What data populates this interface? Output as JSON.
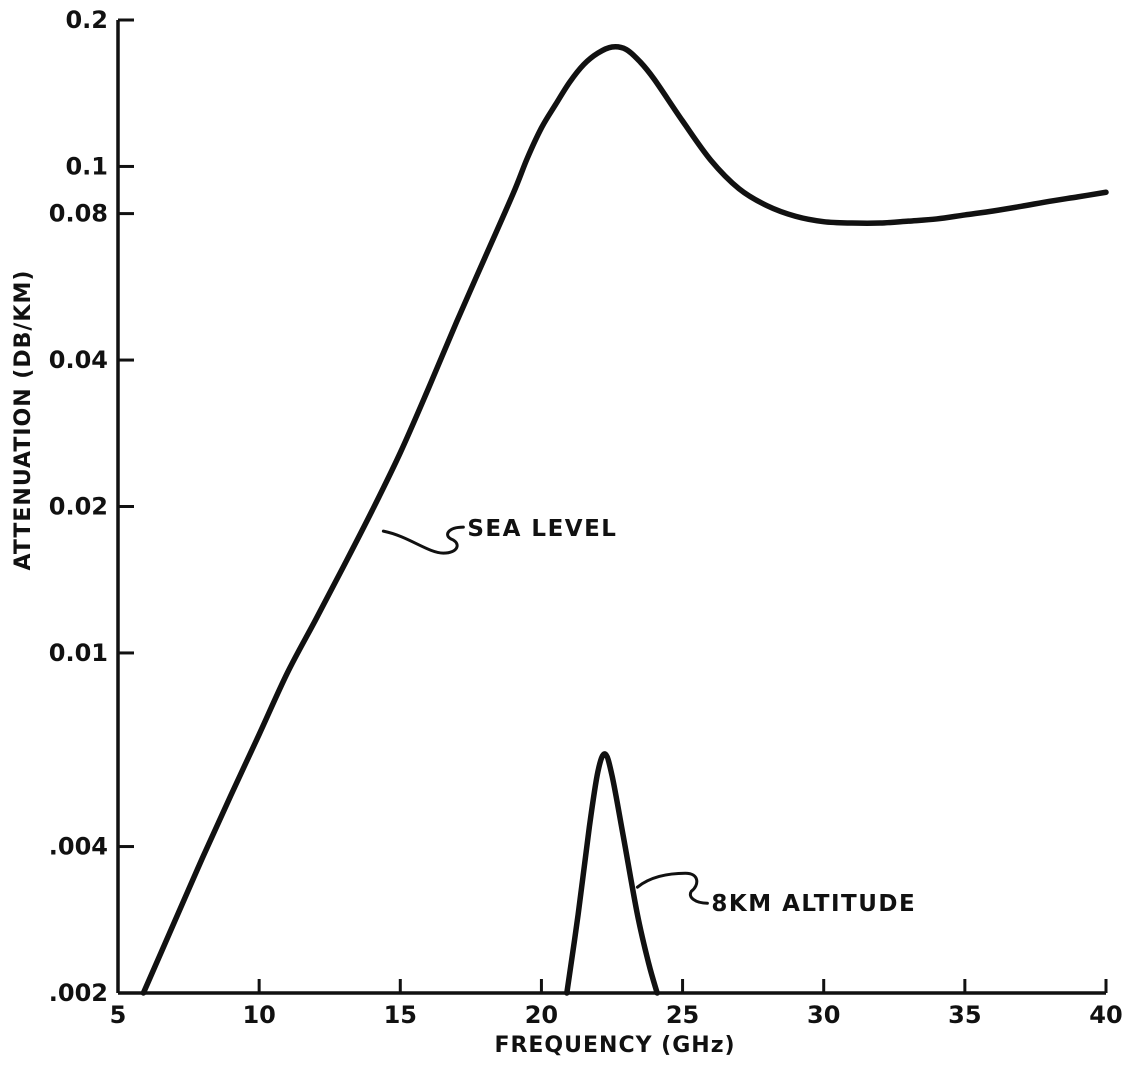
{
  "chart_data": {
    "type": "line",
    "title": "",
    "xlabel": "FREQUENCY (GHz)",
    "ylabel": "ATTENUATION (DB/KM)",
    "xlim": [
      5,
      40
    ],
    "ylim": [
      0.002,
      0.2
    ],
    "yscale": "log",
    "grid": false,
    "legend": "none",
    "x_ticks": [
      5,
      10,
      15,
      20,
      25,
      30,
      35,
      40
    ],
    "x_tick_labels": [
      "5",
      "10",
      "15",
      "20",
      "25",
      "30",
      "35",
      "40"
    ],
    "y_ticks": [
      0.002,
      0.004,
      0.01,
      0.02,
      0.04,
      0.08,
      0.1,
      0.2
    ],
    "y_tick_labels": [
      ".002",
      ".004",
      "0.01",
      "0.02",
      "0.04",
      "0.08",
      "0.1",
      "0.2"
    ],
    "series": [
      {
        "name": "SEA LEVEL",
        "x": [
          5.9,
          7,
          8,
          9,
          10,
          11,
          12,
          13,
          14,
          15,
          16,
          17,
          18,
          19,
          19.5,
          20,
          20.5,
          21,
          21.5,
          22,
          22.5,
          23,
          23.5,
          24,
          25,
          26,
          27,
          28,
          29,
          30,
          31,
          32,
          33,
          34,
          35,
          36,
          37,
          38,
          39,
          40
        ],
        "y": [
          0.002,
          0.0028,
          0.0038,
          0.0051,
          0.0068,
          0.0091,
          0.0117,
          0.0151,
          0.0196,
          0.0258,
          0.035,
          0.048,
          0.065,
          0.088,
          0.104,
          0.12,
          0.134,
          0.149,
          0.162,
          0.171,
          0.176,
          0.174,
          0.164,
          0.151,
          0.124,
          0.103,
          0.09,
          0.083,
          0.079,
          0.077,
          0.0765,
          0.0765,
          0.0772,
          0.078,
          0.0795,
          0.081,
          0.0828,
          0.0848,
          0.0866,
          0.0885
        ]
      },
      {
        "name": "8KM ALTITUDE",
        "x": [
          20.9,
          21.3,
          21.7,
          22.0,
          22.25,
          22.5,
          22.9,
          23.4,
          23.8,
          24.1
        ],
        "y": [
          0.002,
          0.0029,
          0.0044,
          0.0057,
          0.0062,
          0.0056,
          0.0042,
          0.0029,
          0.0023,
          0.002
        ]
      }
    ],
    "annotations": [
      {
        "text": "SEA LEVEL",
        "x": 14.4,
        "y": 0.0178
      },
      {
        "text": "8KM ALTITUDE",
        "x": 23.4,
        "y": 0.0033
      }
    ]
  }
}
